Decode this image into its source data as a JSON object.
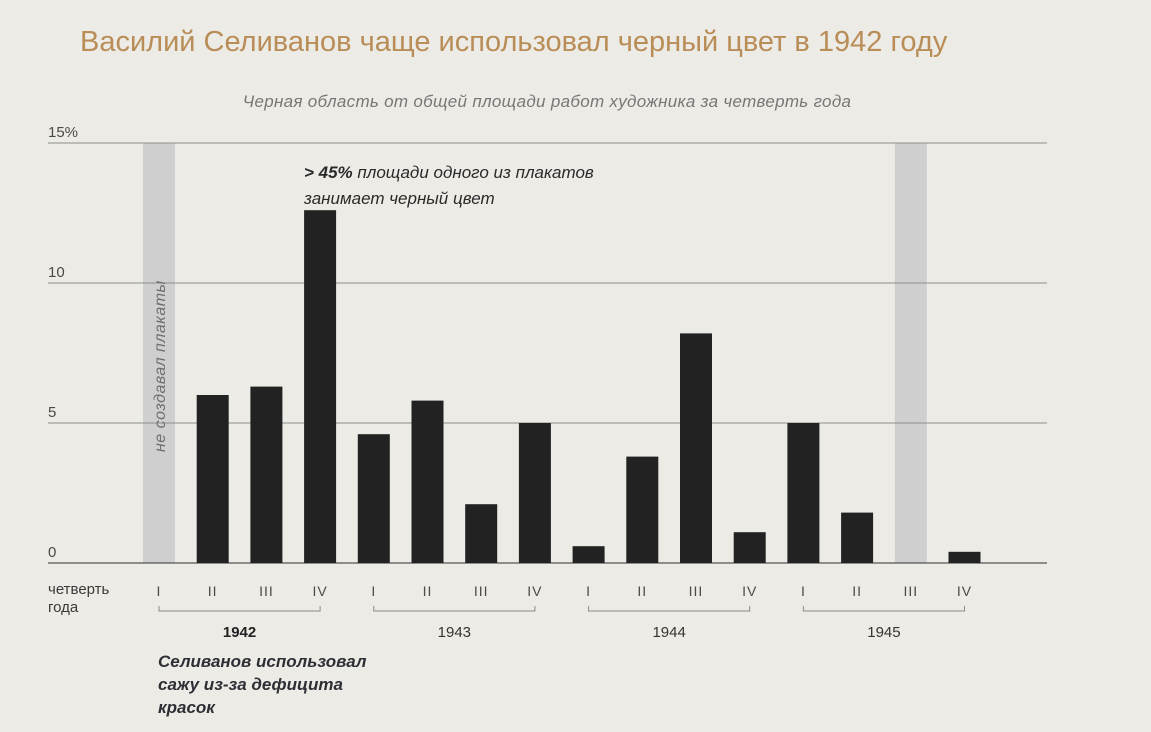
{
  "title": "Василий Селиванов чаще использовал черный цвет в 1942 году",
  "subtitle": "Черная область от общей площади работ художника за четверть года",
  "annotation": {
    "highlight": "> 45%",
    "rest_line1": " площади одного из плакатов",
    "line2": "занимает черный цвет"
  },
  "note": {
    "line1": "Селиванов использовал",
    "line2": "сажу из-за дефицита",
    "line3": "красок"
  },
  "quarter_label": {
    "line1": "четверть",
    "line2": "года"
  },
  "no_posters_label": "не создавал плакаты",
  "colors": {
    "bar": "#222222",
    "gap_band": "#cfcfcf",
    "grid": "#8c8c8c",
    "title": "#b98d57"
  },
  "chart_data": {
    "type": "bar",
    "ylim": [
      0,
      15
    ],
    "yticks": [
      0,
      5,
      10,
      15
    ],
    "ytick_labels": [
      "0",
      "5",
      "10",
      "15%"
    ],
    "categories": [
      "I",
      "II",
      "III",
      "IV",
      "I",
      "II",
      "III",
      "IV",
      "I",
      "II",
      "III",
      "IV",
      "I",
      "II",
      "III",
      "IV"
    ],
    "years": [
      "1942",
      "1943",
      "1944",
      "1945"
    ],
    "highlight_year": "1942",
    "values": [
      null,
      6.0,
      6.3,
      12.6,
      4.6,
      5.8,
      2.1,
      5.0,
      0.6,
      3.8,
      8.2,
      1.1,
      5.0,
      1.8,
      null,
      0.4
    ],
    "no_posters": [
      true,
      false,
      false,
      false,
      false,
      false,
      false,
      false,
      false,
      false,
      false,
      false,
      false,
      false,
      true,
      false
    ],
    "grid": true
  }
}
